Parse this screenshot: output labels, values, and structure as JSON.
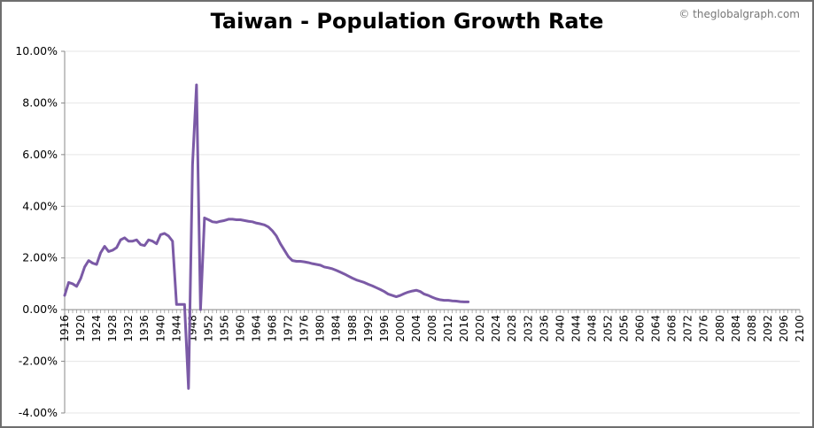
{
  "header": {
    "title": "Taiwan - Population Growth Rate",
    "credit": "© theglobalgraph.com"
  },
  "chart_data": {
    "type": "line",
    "title": "Taiwan - Population Growth Rate",
    "xlabel": "",
    "ylabel": "",
    "xlim": [
      1916,
      2100
    ],
    "ylim": [
      -4,
      10
    ],
    "y_ticks": [
      -4,
      -2,
      0,
      2,
      4,
      6,
      8,
      10
    ],
    "y_tick_labels": [
      "-4.00%",
      "-2.00%",
      "0.00%",
      "2.00%",
      "4.00%",
      "6.00%",
      "8.00%",
      "10.00%"
    ],
    "x_ticks": [
      1916,
      1920,
      1924,
      1928,
      1932,
      1936,
      1940,
      1944,
      1948,
      1952,
      1956,
      1960,
      1964,
      1968,
      1972,
      1976,
      1980,
      1984,
      1988,
      1992,
      1996,
      2000,
      2004,
      2008,
      2012,
      2016,
      2020,
      2024,
      2028,
      2032,
      2036,
      2040,
      2044,
      2048,
      2052,
      2056,
      2060,
      2064,
      2068,
      2072,
      2076,
      2080,
      2084,
      2088,
      2092,
      2096,
      2100
    ],
    "grid": true,
    "line_color": "#7b5aa6",
    "series": [
      {
        "x": [
          1916,
          1917,
          1918,
          1919,
          1920,
          1921,
          1922,
          1923,
          1924,
          1925,
          1926,
          1927,
          1928,
          1929,
          1930,
          1931,
          1932,
          1933,
          1934,
          1935,
          1936,
          1937,
          1938,
          1939,
          1940,
          1941,
          1942,
          1943,
          1944,
          1945,
          1946,
          1947,
          1948,
          1949,
          1950,
          1951,
          1952,
          1953,
          1954,
          1955,
          1956,
          1957,
          1958,
          1959,
          1960,
          1961,
          1962,
          1963,
          1964,
          1965,
          1966,
          1967,
          1968,
          1969,
          1970,
          1971,
          1972,
          1973,
          1974,
          1975,
          1976,
          1977,
          1978,
          1979,
          1980,
          1981,
          1982,
          1983,
          1984,
          1985,
          1986,
          1987,
          1988,
          1989,
          1990,
          1991,
          1992,
          1993,
          1994,
          1995,
          1996,
          1997,
          1998,
          1999,
          2000,
          2001,
          2002,
          2003,
          2004,
          2005,
          2006,
          2007,
          2008,
          2009,
          2010,
          2011,
          2012,
          2013,
          2014,
          2015,
          2016,
          2017
        ],
        "values": [
          0.55,
          1.05,
          1.0,
          0.9,
          1.2,
          1.65,
          1.9,
          1.8,
          1.75,
          2.2,
          2.45,
          2.25,
          2.3,
          2.4,
          2.7,
          2.78,
          2.65,
          2.65,
          2.7,
          2.52,
          2.48,
          2.7,
          2.65,
          2.55,
          2.9,
          2.95,
          2.85,
          2.65,
          0.2,
          0.2,
          0.2,
          -3.05,
          5.6,
          8.7,
          0.0,
          3.55,
          3.48,
          3.4,
          3.38,
          3.42,
          3.45,
          3.5,
          3.5,
          3.48,
          3.48,
          3.45,
          3.42,
          3.4,
          3.35,
          3.32,
          3.28,
          3.2,
          3.05,
          2.85,
          2.55,
          2.3,
          2.05,
          1.9,
          1.87,
          1.87,
          1.85,
          1.82,
          1.78,
          1.75,
          1.72,
          1.65,
          1.62,
          1.58,
          1.52,
          1.45,
          1.38,
          1.3,
          1.22,
          1.15,
          1.1,
          1.05,
          0.98,
          0.92,
          0.85,
          0.78,
          0.7,
          0.6,
          0.55,
          0.5,
          0.55,
          0.62,
          0.68,
          0.72,
          0.75,
          0.7,
          0.6,
          0.55,
          0.48,
          0.42,
          0.38,
          0.36,
          0.36,
          0.34,
          0.33,
          0.31,
          0.3,
          0.3
        ]
      }
    ]
  }
}
